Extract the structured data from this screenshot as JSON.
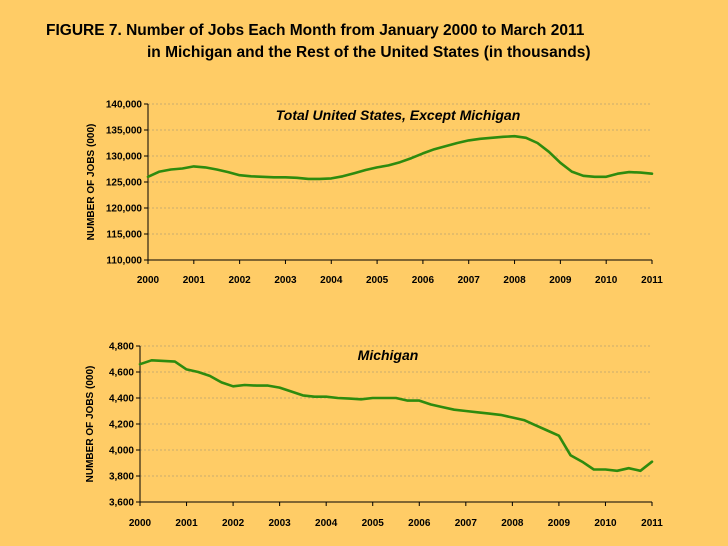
{
  "figure": {
    "title_line1": "FIGURE 7.  Number of Jobs Each Month from January 2000 to March 2011",
    "title_line2": "in Michigan and the Rest of the United States (in thousands)"
  },
  "colors": {
    "background": "#FFCC66",
    "line": "#2E8B0E",
    "grid": "#B8A070"
  },
  "chart_data": [
    {
      "type": "line",
      "title": "Total United States, Except Michigan",
      "xlabel": "",
      "ylabel": "NUMBER OF JOBS (000)",
      "xlim": [
        2000,
        2011
      ],
      "ylim": [
        110000,
        140000
      ],
      "x_ticks": [
        "2000",
        "2001",
        "2002",
        "2003",
        "2004",
        "2005",
        "2006",
        "2007",
        "2008",
        "2009",
        "2010",
        "2011"
      ],
      "y_ticks": [
        "110,000",
        "115,000",
        "120,000",
        "125,000",
        "130,000",
        "135,000",
        "140,000"
      ],
      "grid": true,
      "series": [
        {
          "x": [
            2000.0,
            2000.25,
            2000.5,
            2000.75,
            2001.0,
            2001.25,
            2001.5,
            2001.75,
            2002.0,
            2002.25,
            2002.5,
            2002.75,
            2003.0,
            2003.25,
            2003.5,
            2003.75,
            2004.0,
            2004.25,
            2004.5,
            2004.75,
            2005.0,
            2005.25,
            2005.5,
            2005.75,
            2006.0,
            2006.25,
            2006.5,
            2006.75,
            2007.0,
            2007.25,
            2007.5,
            2007.75,
            2008.0,
            2008.25,
            2008.5,
            2008.75,
            2009.0,
            2009.25,
            2009.5,
            2009.75,
            2010.0,
            2010.25,
            2010.5,
            2010.75,
            2011.0
          ],
          "y": [
            126000,
            127000,
            127400,
            127600,
            128000,
            127800,
            127400,
            126900,
            126300,
            126100,
            126000,
            125900,
            125900,
            125800,
            125600,
            125600,
            125700,
            126100,
            126700,
            127300,
            127800,
            128200,
            128800,
            129600,
            130500,
            131300,
            131900,
            132500,
            133000,
            133300,
            133500,
            133700,
            133800,
            133500,
            132500,
            130800,
            128700,
            127000,
            126200,
            126000,
            126000,
            126600,
            126900,
            126800,
            126600
          ]
        }
      ]
    },
    {
      "type": "line",
      "title": "Michigan",
      "xlabel": "",
      "ylabel": "NUMBER OF JOBS (000)",
      "xlim": [
        2000,
        2011
      ],
      "ylim": [
        3600,
        4800
      ],
      "x_ticks": [
        "2000",
        "2001",
        "2002",
        "2003",
        "2004",
        "2005",
        "2006",
        "2007",
        "2008",
        "2009",
        "2010",
        "2011"
      ],
      "y_ticks": [
        "3,600",
        "3,800",
        "4,000",
        "4,200",
        "4,400",
        "4,600",
        "4,800"
      ],
      "grid": true,
      "series": [
        {
          "x": [
            2000.0,
            2000.25,
            2000.5,
            2000.75,
            2001.0,
            2001.25,
            2001.5,
            2001.75,
            2002.0,
            2002.25,
            2002.5,
            2002.75,
            2003.0,
            2003.25,
            2003.5,
            2003.75,
            2004.0,
            2004.25,
            2004.5,
            2004.75,
            2005.0,
            2005.25,
            2005.5,
            2005.75,
            2006.0,
            2006.25,
            2006.5,
            2006.75,
            2007.0,
            2007.25,
            2007.5,
            2007.75,
            2008.0,
            2008.25,
            2008.5,
            2008.75,
            2009.0,
            2009.25,
            2009.5,
            2009.75,
            2010.0,
            2010.25,
            2010.5,
            2010.75,
            2011.0
          ],
          "y": [
            4660,
            4690,
            4685,
            4680,
            4620,
            4600,
            4570,
            4520,
            4490,
            4500,
            4495,
            4495,
            4480,
            4450,
            4420,
            4410,
            4410,
            4400,
            4395,
            4390,
            4400,
            4400,
            4400,
            4380,
            4380,
            4350,
            4330,
            4310,
            4300,
            4290,
            4280,
            4270,
            4250,
            4230,
            4190,
            4150,
            4110,
            3960,
            3910,
            3850,
            3850,
            3840,
            3860,
            3840,
            3910
          ]
        }
      ]
    }
  ]
}
